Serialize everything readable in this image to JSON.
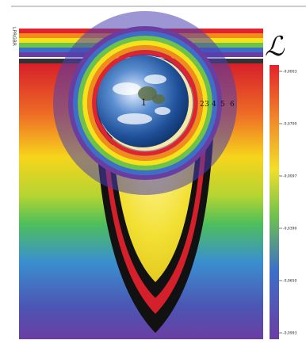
{
  "colorbar": {
    "symbol": "ℒ",
    "ticks": [
      "-0,0003",
      "-0,0700",
      "-0,0097",
      "-0,0390",
      "-0,0650",
      "-0,0993"
    ]
  },
  "shell_labels": [
    "1",
    "2",
    "3",
    "4",
    "5",
    "6"
  ],
  "left_column_label": "LPRGBR",
  "colors": {
    "red": "#e3232b",
    "orange": "#f28a1c",
    "yellow": "#f4e31a",
    "green": "#6cc24a",
    "blue": "#3d6ec8",
    "violet": "#6a3ea1"
  }
}
